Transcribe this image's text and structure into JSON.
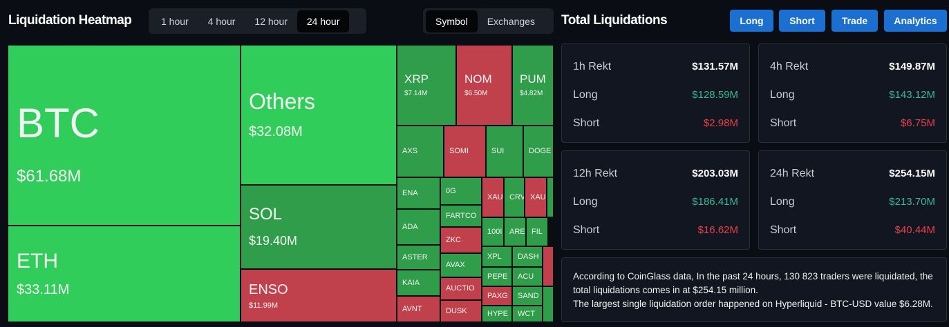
{
  "header": {
    "title": "Liquidation Heatmap",
    "time_tabs": [
      "1 hour",
      "4 hour",
      "12 hour",
      "24 hour"
    ],
    "view_tabs": [
      "Symbol",
      "Exchanges"
    ]
  },
  "heatmap": {
    "tiles": [
      {
        "name": "BTC",
        "value": "$61.68M"
      },
      {
        "name": "ETH",
        "value": "$33.11M"
      },
      {
        "name": "Others",
        "value": "$32.08M"
      },
      {
        "name": "SOL",
        "value": "$19.40M"
      },
      {
        "name": "ENSO",
        "value": "$11.99M"
      },
      {
        "name": "XRP",
        "value": "$7.14M"
      },
      {
        "name": "NOM",
        "value": "$6.50M"
      },
      {
        "name": "PUM",
        "value": "$4.82M"
      },
      {
        "name": "AXS"
      },
      {
        "name": "SOMI"
      },
      {
        "name": "SUI"
      },
      {
        "name": "DOGE"
      },
      {
        "name": "ENA"
      },
      {
        "name": "ADA"
      },
      {
        "name": "ASTER"
      },
      {
        "name": "KAIA"
      },
      {
        "name": "AVNT"
      },
      {
        "name": "0G"
      },
      {
        "name": "FARTCO"
      },
      {
        "name": "ZKC"
      },
      {
        "name": "AVAX"
      },
      {
        "name": "AUCTIO"
      },
      {
        "name": "DUSK"
      },
      {
        "name": "XAU"
      },
      {
        "name": "CRV"
      },
      {
        "name": "XAU"
      },
      {
        "name": "100I"
      },
      {
        "name": "ARE"
      },
      {
        "name": "FIL"
      },
      {
        "name": "XPL"
      },
      {
        "name": "DASH"
      },
      {
        "name": "PEPE"
      },
      {
        "name": "ACU"
      },
      {
        "name": "PAXG"
      },
      {
        "name": "SAND"
      },
      {
        "name": "HYPE"
      },
      {
        "name": "WCT"
      }
    ]
  },
  "summary": {
    "title": "Total Liquidations",
    "buttons": [
      "Long",
      "Short",
      "Trade",
      "Analytics"
    ],
    "cards": [
      {
        "title": "1h Rekt",
        "total": "$131.57M",
        "long_label": "Long",
        "long": "$128.59M",
        "short_label": "Short",
        "short": "$2.98M"
      },
      {
        "title": "4h Rekt",
        "total": "$149.87M",
        "long_label": "Long",
        "long": "$143.12M",
        "short_label": "Short",
        "short": "$6.75M"
      },
      {
        "title": "12h Rekt",
        "total": "$203.03M",
        "long_label": "Long",
        "long": "$186.41M",
        "short_label": "Short",
        "short": "$16.62M"
      },
      {
        "title": "24h Rekt",
        "total": "$254.15M",
        "long_label": "Long",
        "long": "$213.70M",
        "short_label": "Short",
        "short": "$40.44M"
      }
    ],
    "note": [
      "According to CoinGlass data, In the past 24 hours, 130 823 traders were liquidated, the",
      "total liquidations comes in at $254.15 million.",
      "The largest single liquidation order happened on Hyperliquid - BTC-USD value $6.28M."
    ]
  }
}
